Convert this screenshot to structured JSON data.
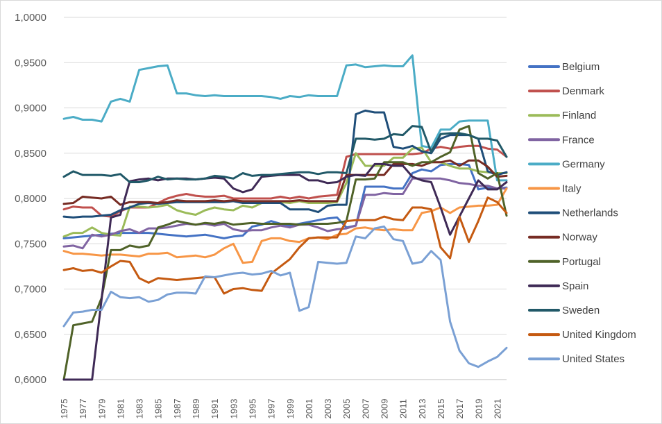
{
  "chart_data": {
    "type": "line",
    "title": "",
    "xlabel": "",
    "ylabel": "",
    "ylim": [
      0.6,
      1.0
    ],
    "y_ticks": [
      "0,6000",
      "0,6500",
      "0,7000",
      "0,7500",
      "0,8000",
      "0,8500",
      "0,9000",
      "0,9500",
      "1,0000"
    ],
    "x_tick_labels": [
      "1975",
      "1977",
      "1979",
      "1981",
      "1983",
      "1985",
      "1987",
      "1989",
      "1991",
      "1993",
      "1995",
      "1997",
      "1999",
      "2001",
      "2003",
      "2005",
      "2007",
      "2009",
      "2011",
      "2013",
      "2015",
      "2017",
      "2019",
      "2021"
    ],
    "grid": true,
    "legend_position": "right",
    "x": [
      1975,
      1976,
      1977,
      1978,
      1979,
      1980,
      1981,
      1982,
      1983,
      1984,
      1985,
      1986,
      1987,
      1988,
      1989,
      1990,
      1991,
      1992,
      1993,
      1994,
      1995,
      1996,
      1997,
      1998,
      1999,
      2000,
      2001,
      2002,
      2003,
      2004,
      2005,
      2006,
      2007,
      2008,
      2009,
      2010,
      2011,
      2012,
      2013,
      2014,
      2015,
      2016,
      2017,
      2018,
      2019,
      2020,
      2021,
      2022
    ],
    "series": [
      {
        "name": "Belgium",
        "color": "#4472C4",
        "values": [
          0.756,
          0.757,
          0.758,
          0.759,
          0.76,
          0.761,
          0.762,
          0.762,
          0.762,
          0.762,
          0.761,
          0.76,
          0.759,
          0.758,
          0.759,
          0.76,
          0.758,
          0.756,
          0.758,
          0.759,
          0.769,
          0.771,
          0.775,
          0.772,
          0.77,
          0.772,
          0.774,
          0.776,
          0.778,
          0.779,
          0.768,
          0.77,
          0.813,
          0.813,
          0.813,
          0.811,
          0.811,
          0.828,
          0.832,
          0.83,
          0.837,
          0.838,
          0.838,
          0.837,
          0.81,
          0.812,
          0.811,
          0.812
        ]
      },
      {
        "name": "Denmark",
        "color": "#C0504D",
        "values": [
          0.788,
          0.791,
          0.79,
          0.79,
          0.781,
          0.78,
          0.786,
          0.79,
          0.79,
          0.79,
          0.795,
          0.8,
          0.803,
          0.805,
          0.803,
          0.802,
          0.802,
          0.803,
          0.8,
          0.8,
          0.8,
          0.8,
          0.8,
          0.802,
          0.8,
          0.802,
          0.8,
          0.802,
          0.803,
          0.804,
          0.846,
          0.849,
          0.849,
          0.849,
          0.849,
          0.849,
          0.849,
          0.849,
          0.85,
          0.855,
          0.857,
          0.855,
          0.857,
          0.858,
          0.858,
          0.855,
          0.854,
          0.846
        ]
      },
      {
        "name": "Finland",
        "color": "#9BBB59",
        "values": [
          0.758,
          0.762,
          0.762,
          0.768,
          0.762,
          0.76,
          0.759,
          0.791,
          0.791,
          0.79,
          0.791,
          0.793,
          0.787,
          0.784,
          0.782,
          0.787,
          0.79,
          0.788,
          0.787,
          0.792,
          0.79,
          0.795,
          0.795,
          0.796,
          0.795,
          0.797,
          0.795,
          0.795,
          0.795,
          0.796,
          0.817,
          0.85,
          0.836,
          0.836,
          0.836,
          0.845,
          0.845,
          0.855,
          0.856,
          0.84,
          0.84,
          0.836,
          0.833,
          0.833,
          0.83,
          0.829,
          0.828,
          0.828
        ]
      },
      {
        "name": "France",
        "color": "#8064A2",
        "values": [
          0.747,
          0.748,
          0.745,
          0.76,
          0.758,
          0.76,
          0.764,
          0.766,
          0.762,
          0.767,
          0.767,
          0.768,
          0.77,
          0.772,
          0.771,
          0.772,
          0.77,
          0.772,
          0.766,
          0.764,
          0.765,
          0.765,
          0.768,
          0.77,
          0.768,
          0.771,
          0.771,
          0.768,
          0.764,
          0.766,
          0.767,
          0.77,
          0.804,
          0.804,
          0.806,
          0.805,
          0.805,
          0.822,
          0.822,
          0.822,
          0.822,
          0.82,
          0.817,
          0.816,
          0.814,
          0.814,
          0.811,
          0.811
        ]
      },
      {
        "name": "Germany",
        "color": "#4BACC6",
        "values": [
          0.888,
          0.89,
          0.887,
          0.887,
          0.885,
          0.907,
          0.91,
          0.907,
          0.942,
          0.944,
          0.946,
          0.947,
          0.916,
          0.916,
          0.914,
          0.913,
          0.914,
          0.913,
          0.913,
          0.913,
          0.913,
          0.913,
          0.912,
          0.91,
          0.913,
          0.912,
          0.914,
          0.913,
          0.913,
          0.913,
          0.947,
          0.948,
          0.945,
          0.946,
          0.947,
          0.946,
          0.946,
          0.958,
          0.858,
          0.856,
          0.876,
          0.876,
          0.885,
          0.886,
          0.886,
          0.886,
          0.82,
          0.82
        ]
      },
      {
        "name": "Italy",
        "color": "#F79646",
        "values": [
          0.742,
          0.739,
          0.739,
          0.738,
          0.737,
          0.738,
          0.738,
          0.737,
          0.736,
          0.739,
          0.739,
          0.74,
          0.735,
          0.736,
          0.737,
          0.735,
          0.738,
          0.745,
          0.75,
          0.729,
          0.73,
          0.753,
          0.756,
          0.756,
          0.753,
          0.752,
          0.756,
          0.757,
          0.755,
          0.76,
          0.761,
          0.767,
          0.768,
          0.766,
          0.765,
          0.766,
          0.765,
          0.765,
          0.784,
          0.786,
          0.79,
          0.784,
          0.79,
          0.791,
          0.792,
          0.792,
          0.793,
          0.811
        ]
      },
      {
        "name": "Netherlands",
        "color": "#1F4E79",
        "values": [
          0.78,
          0.779,
          0.78,
          0.78,
          0.781,
          0.782,
          0.787,
          0.79,
          0.794,
          0.795,
          0.794,
          0.795,
          0.796,
          0.796,
          0.796,
          0.796,
          0.796,
          0.796,
          0.797,
          0.795,
          0.795,
          0.795,
          0.795,
          0.795,
          0.788,
          0.788,
          0.788,
          0.785,
          0.792,
          0.793,
          0.793,
          0.893,
          0.897,
          0.895,
          0.895,
          0.857,
          0.855,
          0.858,
          0.852,
          0.85,
          0.866,
          0.87,
          0.87,
          0.87,
          0.866,
          0.83,
          0.826,
          0.829
        ]
      },
      {
        "name": "Norway",
        "color": "#772C24",
        "values": [
          0.794,
          0.795,
          0.802,
          0.801,
          0.8,
          0.802,
          0.793,
          0.796,
          0.796,
          0.796,
          0.795,
          0.796,
          0.798,
          0.797,
          0.797,
          0.797,
          0.798,
          0.797,
          0.798,
          0.797,
          0.797,
          0.797,
          0.797,
          0.797,
          0.797,
          0.798,
          0.797,
          0.797,
          0.797,
          0.797,
          0.826,
          0.826,
          0.826,
          0.826,
          0.826,
          0.838,
          0.838,
          0.838,
          0.836,
          0.84,
          0.84,
          0.842,
          0.836,
          0.842,
          0.842,
          0.835,
          0.824,
          0.825
        ]
      },
      {
        "name": "Portugal",
        "color": "#4F6228",
        "values": [
          0.6,
          0.66,
          0.662,
          0.664,
          0.69,
          0.743,
          0.743,
          0.748,
          0.746,
          0.748,
          0.768,
          0.771,
          0.775,
          0.773,
          0.771,
          0.773,
          0.772,
          0.774,
          0.771,
          0.772,
          0.773,
          0.772,
          0.772,
          0.772,
          0.772,
          0.771,
          0.772,
          0.772,
          0.772,
          0.773,
          0.775,
          0.821,
          0.821,
          0.822,
          0.84,
          0.84,
          0.84,
          0.836,
          0.84,
          0.84,
          0.846,
          0.851,
          0.876,
          0.88,
          0.828,
          0.822,
          0.828,
          0.781
        ]
      },
      {
        "name": "Spain",
        "color": "#3F2A56",
        "values": [
          0.6,
          0.6,
          0.6,
          0.6,
          0.688,
          0.779,
          0.782,
          0.819,
          0.821,
          0.822,
          0.82,
          0.822,
          0.822,
          0.822,
          0.821,
          0.822,
          0.823,
          0.822,
          0.811,
          0.807,
          0.81,
          0.824,
          0.825,
          0.826,
          0.826,
          0.826,
          0.82,
          0.82,
          0.817,
          0.818,
          0.824,
          0.826,
          0.825,
          0.838,
          0.838,
          0.836,
          0.836,
          0.824,
          0.82,
          0.818,
          0.79,
          0.76,
          0.78,
          0.8,
          0.82,
          0.81,
          0.81,
          0.818
        ]
      },
      {
        "name": "Sweden",
        "color": "#215968",
        "values": [
          0.824,
          0.83,
          0.826,
          0.826,
          0.826,
          0.825,
          0.827,
          0.818,
          0.818,
          0.82,
          0.824,
          0.821,
          0.822,
          0.821,
          0.821,
          0.822,
          0.825,
          0.824,
          0.822,
          0.828,
          0.825,
          0.826,
          0.826,
          0.827,
          0.828,
          0.829,
          0.829,
          0.827,
          0.829,
          0.829,
          0.828,
          0.866,
          0.866,
          0.865,
          0.866,
          0.871,
          0.87,
          0.88,
          0.879,
          0.851,
          0.871,
          0.872,
          0.872,
          0.87,
          0.866,
          0.866,
          0.864,
          0.846
        ]
      },
      {
        "name": "United Kingdom",
        "color": "#C55A11",
        "values": [
          0.721,
          0.723,
          0.72,
          0.721,
          0.718,
          0.725,
          0.731,
          0.73,
          0.712,
          0.707,
          0.712,
          0.711,
          0.71,
          0.711,
          0.712,
          0.713,
          0.713,
          0.695,
          0.7,
          0.701,
          0.699,
          0.698,
          0.717,
          0.725,
          0.733,
          0.746,
          0.756,
          0.757,
          0.757,
          0.757,
          0.775,
          0.776,
          0.776,
          0.776,
          0.78,
          0.777,
          0.776,
          0.79,
          0.79,
          0.788,
          0.746,
          0.734,
          0.78,
          0.752,
          0.775,
          0.801,
          0.796,
          0.784
        ]
      },
      {
        "name": "United States",
        "color": "#7AA0D4",
        "values": [
          0.659,
          0.674,
          0.675,
          0.677,
          0.677,
          0.697,
          0.691,
          0.69,
          0.691,
          0.686,
          0.688,
          0.694,
          0.696,
          0.696,
          0.695,
          0.714,
          0.713,
          0.715,
          0.717,
          0.718,
          0.716,
          0.717,
          0.72,
          0.715,
          0.718,
          0.676,
          0.68,
          0.73,
          0.729,
          0.728,
          0.729,
          0.758,
          0.756,
          0.767,
          0.769,
          0.755,
          0.753,
          0.728,
          0.73,
          0.742,
          0.732,
          0.664,
          0.632,
          0.618,
          0.614,
          0.62,
          0.625,
          0.635
        ]
      }
    ]
  }
}
